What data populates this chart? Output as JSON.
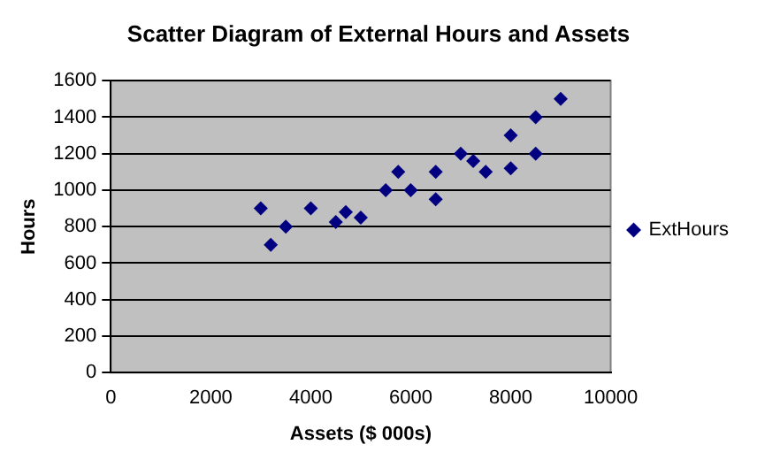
{
  "chart_data": {
    "type": "scatter",
    "title": "Scatter Diagram of External Hours and Assets",
    "xlabel": "Assets ($ 000s)",
    "ylabel": "Hours",
    "xlim": [
      0,
      10000
    ],
    "xticks": [
      0,
      2000,
      4000,
      6000,
      8000,
      10000
    ],
    "ylim": [
      0,
      1600
    ],
    "yticks": [
      0,
      200,
      400,
      600,
      800,
      1000,
      1200,
      1400,
      1600
    ],
    "grid": "y",
    "legend": "right",
    "marker": "diamond",
    "series": [
      {
        "name": "ExtHours",
        "color": "#000080",
        "x": [
          3000,
          3200,
          3500,
          4000,
          4500,
          4700,
          5000,
          5500,
          5750,
          6000,
          6500,
          6500,
          7000,
          7250,
          7500,
          8000,
          8000,
          8500,
          8500,
          9000
        ],
        "values": [
          900,
          700,
          800,
          900,
          825,
          880,
          850,
          1000,
          1100,
          1000,
          1100,
          950,
          1200,
          1160,
          1100,
          1300,
          1120,
          1400,
          1200,
          1500
        ]
      }
    ]
  }
}
